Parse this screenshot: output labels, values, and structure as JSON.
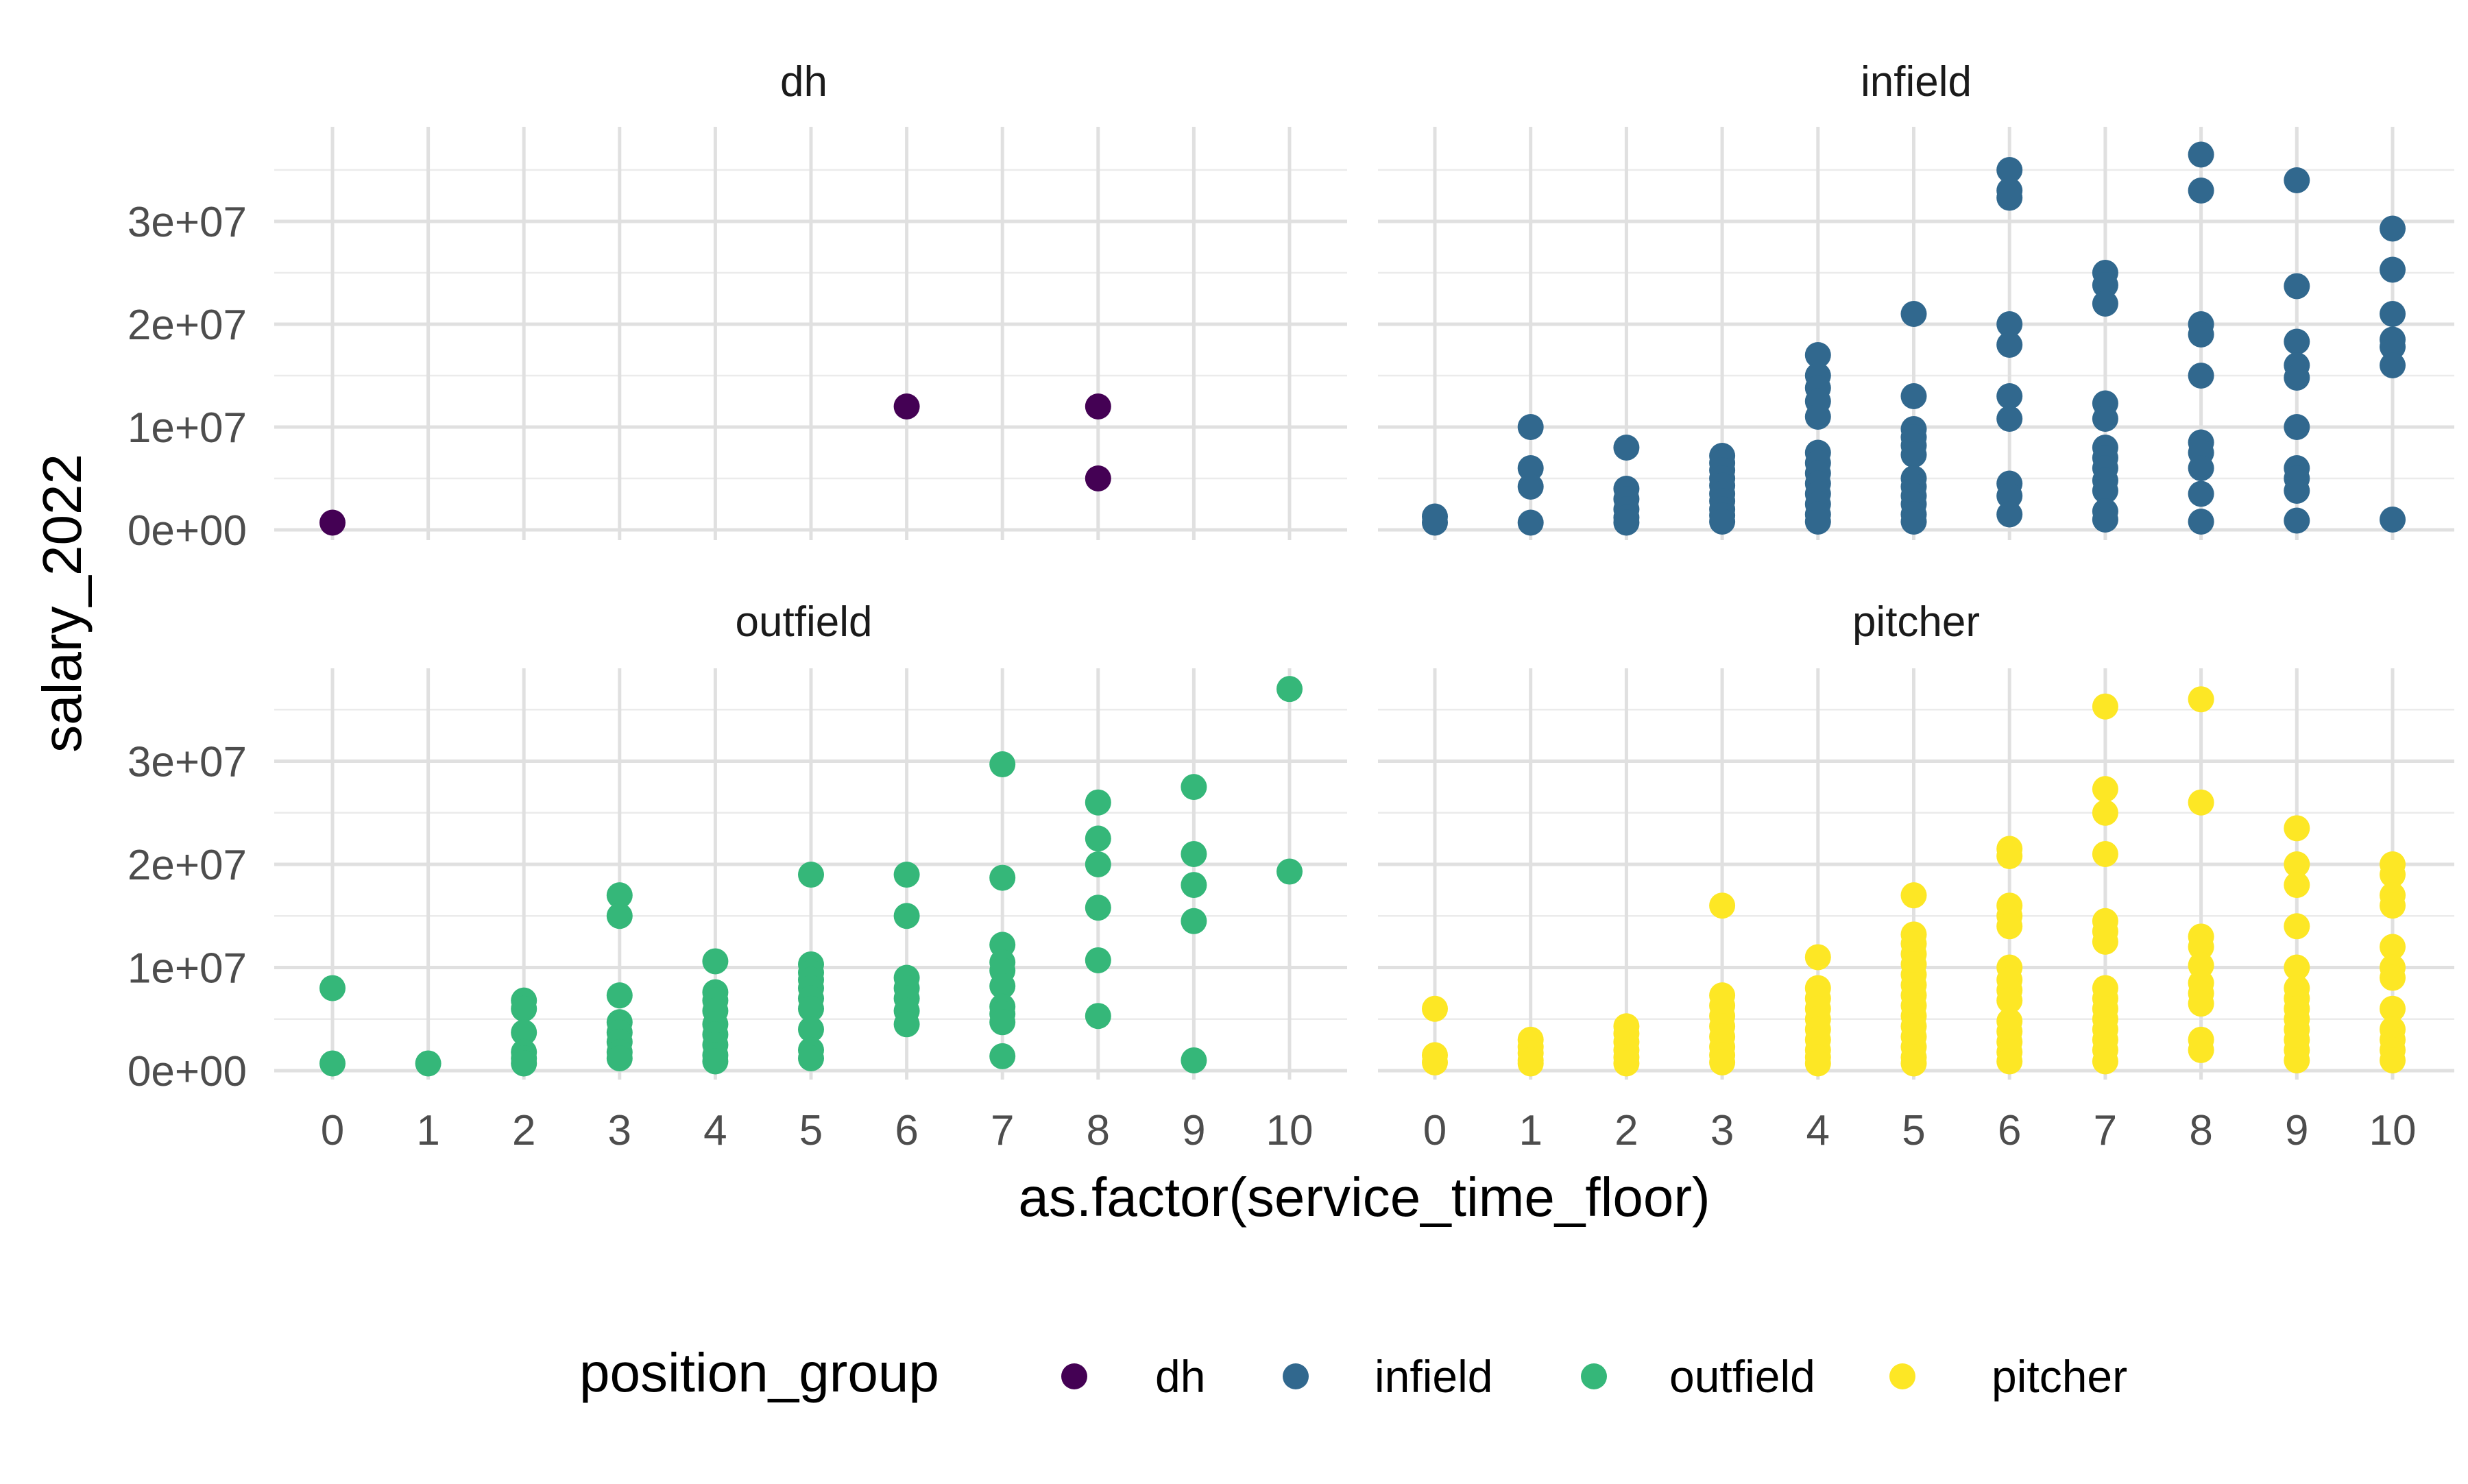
{
  "chart_data": {
    "type": "scatter",
    "facet_by": "position_group",
    "xlabel": "as.factor(service_time_floor)",
    "ylabel": "salary_2022",
    "categories": [
      "0",
      "1",
      "2",
      "3",
      "4",
      "5",
      "6",
      "7",
      "8",
      "9",
      "10"
    ],
    "ylim": [
      0,
      37000000
    ],
    "y_ticks": [
      {
        "value": 0,
        "label": "0e+00"
      },
      {
        "value": 10000000,
        "label": "1e+07"
      },
      {
        "value": 20000000,
        "label": "2e+07"
      },
      {
        "value": 30000000,
        "label": "3e+07"
      }
    ],
    "grid": true,
    "legend": {
      "title": "position_group",
      "position": "bottom"
    },
    "colors": {
      "dh": "#440154",
      "infield": "#31688e",
      "outfield": "#35b779",
      "pitcher": "#fde725"
    },
    "panels": [
      {
        "name": "dh",
        "points": [
          [
            0,
            700000
          ],
          [
            6,
            12000000
          ],
          [
            8,
            12000000
          ],
          [
            8,
            5000000
          ]
        ]
      },
      {
        "name": "infield",
        "points": [
          [
            0,
            1300000
          ],
          [
            0,
            700000
          ],
          [
            1,
            10000000
          ],
          [
            1,
            6000000
          ],
          [
            1,
            4200000
          ],
          [
            1,
            700000
          ],
          [
            2,
            8000000
          ],
          [
            2,
            4000000
          ],
          [
            2,
            3000000
          ],
          [
            2,
            2000000
          ],
          [
            2,
            1200000
          ],
          [
            2,
            700000
          ],
          [
            3,
            7200000
          ],
          [
            3,
            6500000
          ],
          [
            3,
            5800000
          ],
          [
            3,
            5000000
          ],
          [
            3,
            4300000
          ],
          [
            3,
            3500000
          ],
          [
            3,
            2800000
          ],
          [
            3,
            2000000
          ],
          [
            3,
            1400000
          ],
          [
            3,
            800000
          ],
          [
            4,
            17000000
          ],
          [
            4,
            15000000
          ],
          [
            4,
            13800000
          ],
          [
            4,
            12500000
          ],
          [
            4,
            11000000
          ],
          [
            4,
            7500000
          ],
          [
            4,
            6500000
          ],
          [
            4,
            5500000
          ],
          [
            4,
            4500000
          ],
          [
            4,
            3500000
          ],
          [
            4,
            2500000
          ],
          [
            4,
            1500000
          ],
          [
            4,
            800000
          ],
          [
            5,
            21000000
          ],
          [
            5,
            13000000
          ],
          [
            5,
            9800000
          ],
          [
            5,
            9000000
          ],
          [
            5,
            8200000
          ],
          [
            5,
            7300000
          ],
          [
            5,
            5000000
          ],
          [
            5,
            4200000
          ],
          [
            5,
            3300000
          ],
          [
            5,
            2500000
          ],
          [
            5,
            1500000
          ],
          [
            5,
            800000
          ],
          [
            6,
            35000000
          ],
          [
            6,
            33000000
          ],
          [
            6,
            32300000
          ],
          [
            6,
            20000000
          ],
          [
            6,
            18000000
          ],
          [
            6,
            13000000
          ],
          [
            6,
            10800000
          ],
          [
            6,
            4500000
          ],
          [
            6,
            3300000
          ],
          [
            6,
            1500000
          ],
          [
            7,
            25000000
          ],
          [
            7,
            23800000
          ],
          [
            7,
            22000000
          ],
          [
            7,
            12300000
          ],
          [
            7,
            10800000
          ],
          [
            7,
            8000000
          ],
          [
            7,
            7000000
          ],
          [
            7,
            6000000
          ],
          [
            7,
            4800000
          ],
          [
            7,
            3800000
          ],
          [
            7,
            1800000
          ],
          [
            7,
            1000000
          ],
          [
            8,
            36500000
          ],
          [
            8,
            33000000
          ],
          [
            8,
            20000000
          ],
          [
            8,
            19000000
          ],
          [
            8,
            15000000
          ],
          [
            8,
            8500000
          ],
          [
            8,
            7500000
          ],
          [
            8,
            6000000
          ],
          [
            8,
            3500000
          ],
          [
            8,
            800000
          ],
          [
            9,
            34000000
          ],
          [
            9,
            23700000
          ],
          [
            9,
            18300000
          ],
          [
            9,
            16000000
          ],
          [
            9,
            14800000
          ],
          [
            9,
            10000000
          ],
          [
            9,
            6000000
          ],
          [
            9,
            5000000
          ],
          [
            9,
            3800000
          ],
          [
            9,
            900000
          ],
          [
            10,
            29300000
          ],
          [
            10,
            25300000
          ],
          [
            10,
            21000000
          ],
          [
            10,
            18500000
          ],
          [
            10,
            17800000
          ],
          [
            10,
            16000000
          ],
          [
            10,
            1000000
          ]
        ]
      },
      {
        "name": "outfield",
        "points": [
          [
            0,
            8000000
          ],
          [
            0,
            700000
          ],
          [
            1,
            700000
          ],
          [
            2,
            6800000
          ],
          [
            2,
            6000000
          ],
          [
            2,
            3700000
          ],
          [
            2,
            1800000
          ],
          [
            2,
            1200000
          ],
          [
            2,
            700000
          ],
          [
            3,
            17000000
          ],
          [
            3,
            15000000
          ],
          [
            3,
            7300000
          ],
          [
            3,
            4700000
          ],
          [
            3,
            3700000
          ],
          [
            3,
            2800000
          ],
          [
            3,
            1800000
          ],
          [
            3,
            1200000
          ],
          [
            4,
            10600000
          ],
          [
            4,
            7600000
          ],
          [
            4,
            6800000
          ],
          [
            4,
            5800000
          ],
          [
            4,
            4500000
          ],
          [
            4,
            3500000
          ],
          [
            4,
            2500000
          ],
          [
            4,
            1500000
          ],
          [
            4,
            900000
          ],
          [
            5,
            19000000
          ],
          [
            5,
            10300000
          ],
          [
            5,
            9500000
          ],
          [
            5,
            8800000
          ],
          [
            5,
            8000000
          ],
          [
            5,
            7000000
          ],
          [
            5,
            6000000
          ],
          [
            5,
            4000000
          ],
          [
            5,
            2000000
          ],
          [
            5,
            1200000
          ],
          [
            6,
            19000000
          ],
          [
            6,
            15000000
          ],
          [
            6,
            9000000
          ],
          [
            6,
            8000000
          ],
          [
            6,
            7000000
          ],
          [
            6,
            5800000
          ],
          [
            6,
            4500000
          ],
          [
            7,
            29700000
          ],
          [
            7,
            18700000
          ],
          [
            7,
            12200000
          ],
          [
            7,
            10500000
          ],
          [
            7,
            9700000
          ],
          [
            7,
            8200000
          ],
          [
            7,
            6200000
          ],
          [
            7,
            5500000
          ],
          [
            7,
            4700000
          ],
          [
            7,
            1400000
          ],
          [
            8,
            26000000
          ],
          [
            8,
            22500000
          ],
          [
            8,
            20000000
          ],
          [
            8,
            15800000
          ],
          [
            8,
            10700000
          ],
          [
            8,
            5300000
          ],
          [
            9,
            27500000
          ],
          [
            9,
            21000000
          ],
          [
            9,
            18000000
          ],
          [
            9,
            14500000
          ],
          [
            9,
            1000000
          ],
          [
            10,
            37000000
          ],
          [
            10,
            19300000
          ]
        ]
      },
      {
        "name": "pitcher",
        "points": [
          [
            0,
            6000000
          ],
          [
            0,
            1500000
          ],
          [
            0,
            800000
          ],
          [
            1,
            3000000
          ],
          [
            1,
            2300000
          ],
          [
            1,
            1700000
          ],
          [
            1,
            1000000
          ],
          [
            1,
            700000
          ],
          [
            2,
            4300000
          ],
          [
            2,
            3600000
          ],
          [
            2,
            2800000
          ],
          [
            2,
            2000000
          ],
          [
            2,
            1300000
          ],
          [
            2,
            700000
          ],
          [
            3,
            16000000
          ],
          [
            3,
            7300000
          ],
          [
            3,
            6300000
          ],
          [
            3,
            5300000
          ],
          [
            3,
            4300000
          ],
          [
            3,
            3300000
          ],
          [
            3,
            2300000
          ],
          [
            3,
            1500000
          ],
          [
            3,
            800000
          ],
          [
            4,
            11000000
          ],
          [
            4,
            8000000
          ],
          [
            4,
            7000000
          ],
          [
            4,
            6000000
          ],
          [
            4,
            5000000
          ],
          [
            4,
            4000000
          ],
          [
            4,
            3000000
          ],
          [
            4,
            2000000
          ],
          [
            4,
            1300000
          ],
          [
            4,
            700000
          ],
          [
            5,
            17000000
          ],
          [
            5,
            13200000
          ],
          [
            5,
            12300000
          ],
          [
            5,
            11300000
          ],
          [
            5,
            10300000
          ],
          [
            5,
            9300000
          ],
          [
            5,
            8300000
          ],
          [
            5,
            7300000
          ],
          [
            5,
            6300000
          ],
          [
            5,
            5300000
          ],
          [
            5,
            4300000
          ],
          [
            5,
            3300000
          ],
          [
            5,
            2300000
          ],
          [
            5,
            1300000
          ],
          [
            5,
            700000
          ],
          [
            6,
            21500000
          ],
          [
            6,
            20800000
          ],
          [
            6,
            16000000
          ],
          [
            6,
            15000000
          ],
          [
            6,
            14000000
          ],
          [
            6,
            10000000
          ],
          [
            6,
            8800000
          ],
          [
            6,
            7800000
          ],
          [
            6,
            6800000
          ],
          [
            6,
            4800000
          ],
          [
            6,
            3800000
          ],
          [
            6,
            2800000
          ],
          [
            6,
            1800000
          ],
          [
            6,
            900000
          ],
          [
            7,
            35300000
          ],
          [
            7,
            27300000
          ],
          [
            7,
            25000000
          ],
          [
            7,
            21000000
          ],
          [
            7,
            14500000
          ],
          [
            7,
            13500000
          ],
          [
            7,
            12500000
          ],
          [
            7,
            8000000
          ],
          [
            7,
            7000000
          ],
          [
            7,
            6000000
          ],
          [
            7,
            5000000
          ],
          [
            7,
            4000000
          ],
          [
            7,
            3000000
          ],
          [
            7,
            2000000
          ],
          [
            7,
            900000
          ],
          [
            8,
            36000000
          ],
          [
            8,
            26000000
          ],
          [
            8,
            13000000
          ],
          [
            8,
            12000000
          ],
          [
            8,
            10200000
          ],
          [
            8,
            8500000
          ],
          [
            8,
            7500000
          ],
          [
            8,
            6500000
          ],
          [
            8,
            3000000
          ],
          [
            8,
            2000000
          ],
          [
            9,
            23500000
          ],
          [
            9,
            20000000
          ],
          [
            9,
            18000000
          ],
          [
            9,
            14000000
          ],
          [
            9,
            10000000
          ],
          [
            9,
            8000000
          ],
          [
            9,
            7000000
          ],
          [
            9,
            6000000
          ],
          [
            9,
            5000000
          ],
          [
            9,
            4000000
          ],
          [
            9,
            3000000
          ],
          [
            9,
            2000000
          ],
          [
            9,
            1000000
          ],
          [
            10,
            20000000
          ],
          [
            10,
            19000000
          ],
          [
            10,
            17000000
          ],
          [
            10,
            16000000
          ],
          [
            10,
            12000000
          ],
          [
            10,
            10000000
          ],
          [
            10,
            9000000
          ],
          [
            10,
            6000000
          ],
          [
            10,
            4000000
          ],
          [
            10,
            3000000
          ],
          [
            10,
            2000000
          ],
          [
            10,
            1000000
          ]
        ]
      }
    ]
  }
}
